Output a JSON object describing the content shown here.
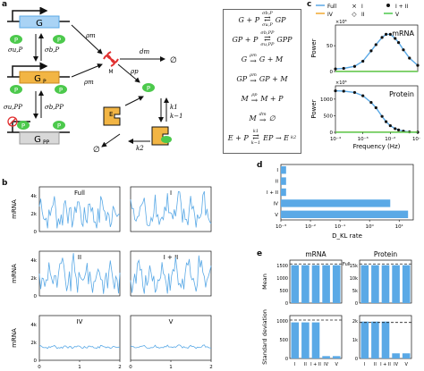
{
  "panels": {
    "a": "a",
    "b": "b",
    "c": "c",
    "d": "d",
    "e": "e"
  },
  "colors": {
    "blue": "#5aa9e6",
    "green": "#4cc94c",
    "orange": "#f0a830",
    "red": "#e03030",
    "gene": "#a9d3f5",
    "genep": "#f2b544",
    "genepp": "#d8d8d8",
    "dashed": "#222"
  },
  "schematic": {
    "gene_labels": [
      "G",
      "G",
      "G"
    ],
    "gene_subs": [
      "",
      "P",
      "PP"
    ],
    "p_label": "P",
    "m_label": "M",
    "e_label": "E",
    "rates": {
      "sigma_u_p": "σu,P",
      "sigma_b_p": "σb,P",
      "sigma_u_pp": "σu,PP",
      "sigma_b_pp": "σb,PP",
      "rho_m_top": "ρm",
      "rho_m_bot": "ρm",
      "d_m": "dm",
      "rho_p": "ρp",
      "k1": "k1",
      "k_minus1": "k−1",
      "k2": "k2",
      "empty1": "∅",
      "empty2": "∅"
    }
  },
  "reactions": [
    {
      "lhs": "G + P",
      "rate_top": "σb,P",
      "rate_bot": "σu,P",
      "rhs": "GP"
    },
    {
      "lhs": "GP + P",
      "rate_top": "σb,PP",
      "rate_bot": "σu,PP",
      "rhs": "GPP"
    },
    {
      "lhs": "G",
      "rate_top": "ρm",
      "rate_bot": "",
      "rhs": "G + M"
    },
    {
      "lhs": "GP",
      "rate_top": "ρm",
      "rate_bot": "",
      "rhs": "GP + M"
    },
    {
      "lhs": "M",
      "rate_top": "ρp",
      "rate_bot": "",
      "rhs": "M + P"
    },
    {
      "lhs": "M",
      "rate_top": "dm",
      "rate_bot": "",
      "rhs": "∅"
    },
    {
      "lhs": "E + P",
      "rate_top": "k1",
      "rate_bot": "k−1",
      "rhs": "EP → E",
      "rate_mid": "k2"
    }
  ],
  "panel_b": {
    "ylabel": "mRNA",
    "xlabel": "Time (h)",
    "yticks": [
      "0",
      "2k",
      "4k"
    ],
    "xticks": [
      "0",
      "1",
      "2"
    ],
    "titles": [
      "Full",
      "I",
      "II",
      "I + II",
      "IV",
      "V"
    ]
  },
  "chart_data": [
    {
      "type": "line",
      "title": "",
      "legend": [
        {
          "label": "Full",
          "style": "line",
          "color": "#5aa9e6"
        },
        {
          "label": "I",
          "style": "x",
          "color": "#111"
        },
        {
          "label": "I + II",
          "style": "dot",
          "color": "#111"
        },
        {
          "label": "IV",
          "style": "line",
          "color": "#f0a830"
        },
        {
          "label": "II",
          "style": "diamond",
          "color": "#111"
        },
        {
          "label": "V",
          "style": "line",
          "color": "#4cc94c"
        }
      ],
      "subplots": [
        {
          "name": "mRNA",
          "ylabel": "Power",
          "exponent": "×10⁸",
          "yticks": [
            0,
            50
          ],
          "ylim": [
            0,
            90
          ],
          "xscale": "log",
          "x": [
            0.0001,
            0.0002,
            0.0005,
            0.001,
            0.002,
            0.003,
            0.005,
            0.007,
            0.01,
            0.015,
            0.02,
            0.03,
            0.05,
            0.1
          ],
          "series": [
            {
              "name": "Full",
              "values": [
                5,
                6,
                10,
                20,
                40,
                52,
                66,
                72,
                72,
                64,
                56,
                42,
                26,
                12
              ]
            },
            {
              "name": "IV",
              "values": [
                0.3,
                0.3,
                0.3,
                0.3,
                0.3,
                0.3,
                0.3,
                0.3,
                0.3,
                0.3,
                0.3,
                0.3,
                0.3,
                0.3
              ]
            },
            {
              "name": "V",
              "values": [
                0.2,
                0.2,
                0.2,
                0.2,
                0.2,
                0.2,
                0.2,
                0.2,
                0.2,
                0.2,
                0.2,
                0.2,
                0.2,
                0.2
              ]
            }
          ]
        },
        {
          "name": "Protein",
          "ylabel": "Power",
          "exponent": "×10⁸",
          "yticks": [
            0,
            500,
            1000
          ],
          "ylim": [
            0,
            1400
          ],
          "xscale": "log",
          "xlabel": "Frequency (Hz)",
          "xticks": [
            "10⁻⁴",
            "10⁻³",
            "10⁻²",
            "10⁻¹"
          ],
          "x": [
            0.0001,
            0.0002,
            0.0005,
            0.001,
            0.002,
            0.003,
            0.005,
            0.007,
            0.01,
            0.015,
            0.02,
            0.03,
            0.05,
            0.1
          ],
          "series": [
            {
              "name": "Full",
              "values": [
                1250,
                1240,
                1200,
                1100,
                900,
                740,
                480,
                320,
                200,
                110,
                70,
                35,
                12,
                3
              ]
            },
            {
              "name": "IV",
              "values": [
                5,
                5,
                5,
                5,
                5,
                5,
                5,
                5,
                5,
                5,
                5,
                5,
                5,
                5
              ]
            },
            {
              "name": "V",
              "values": [
                3,
                3,
                3,
                3,
                3,
                3,
                3,
                3,
                3,
                3,
                3,
                3,
                3,
                3
              ]
            }
          ]
        }
      ]
    },
    {
      "type": "bar",
      "orientation": "horizontal",
      "categories": [
        "I",
        "II",
        "I + II",
        "IV",
        "V"
      ],
      "values": [
        0.0015,
        0.0015,
        0.0015,
        5,
        20
      ],
      "xlabel": "D_KL rate",
      "xscale": "log",
      "xticks": [
        "10⁻³",
        "10⁻²",
        "10⁻¹",
        "10⁰",
        "10¹"
      ],
      "xlim": [
        0.001,
        30
      ]
    },
    {
      "type": "bar",
      "categories": [
        "I",
        "II",
        "I + II",
        "IV",
        "V"
      ],
      "subplots": [
        {
          "name": "mRNA Mean",
          "ylabel": "Mean",
          "values": [
            1500,
            1500,
            1500,
            1500,
            1500
          ],
          "full_reference": 1550,
          "yticks": [
            "0",
            "500",
            "1000",
            "1500"
          ],
          "ylim": [
            0,
            1700
          ],
          "full_label": "Full"
        },
        {
          "name": "Protein Mean",
          "ylabel": "Mean",
          "values": [
            15000,
            15000,
            15000,
            15000,
            15000
          ],
          "full_reference": 15500,
          "yticks": [
            "0",
            "5k",
            "10k",
            "15k"
          ],
          "ylim": [
            0,
            17000
          ]
        },
        {
          "name": "mRNA Std",
          "ylabel": "Standard deviation",
          "values": [
            1220,
            1220,
            1220,
            80,
            80
          ],
          "full_reference": 1300,
          "yticks": [
            "0",
            "500",
            "1000"
          ],
          "ylim": [
            0,
            1450
          ]
        },
        {
          "name": "Protein Std",
          "ylabel": "Standard deviation",
          "values": [
            2150,
            2150,
            2150,
            300,
            300
          ],
          "full_reference": 2100,
          "yticks": [
            "0",
            "1k",
            "2k"
          ],
          "ylim": [
            0,
            2500
          ]
        }
      ],
      "column_titles": [
        "mRNA",
        "Protein"
      ]
    }
  ]
}
